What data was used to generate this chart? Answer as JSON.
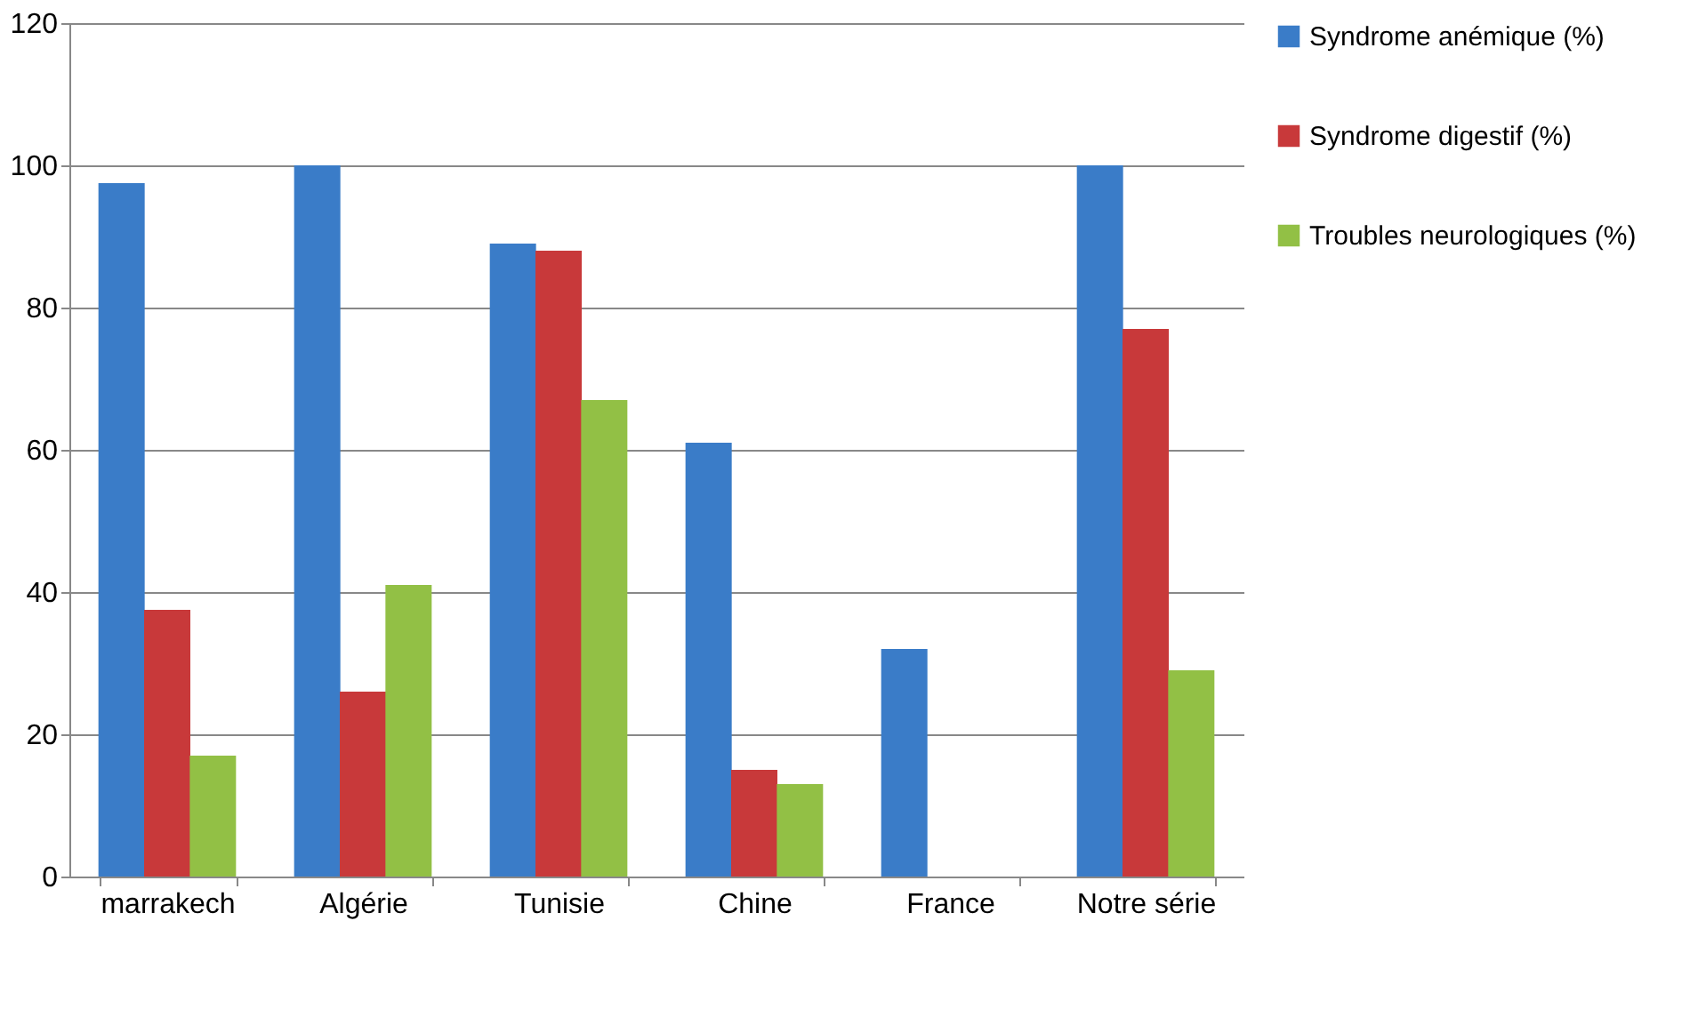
{
  "chart_data": {
    "type": "bar",
    "categories": [
      "marrakech",
      "Algérie",
      "Tunisie",
      "Chine",
      "France",
      "Notre série"
    ],
    "series": [
      {
        "name": "Syndrome anémique (%)",
        "color": "#3a7cc8",
        "values": [
          97.5,
          100,
          89,
          61,
          32,
          100
        ]
      },
      {
        "name": "Syndrome digestif (%)",
        "color": "#c8393a",
        "values": [
          37.5,
          26,
          88,
          15,
          0,
          77
        ]
      },
      {
        "name": "Troubles neurologiques (%)",
        "color": "#92c045",
        "values": [
          17,
          41,
          67,
          13,
          0,
          29
        ]
      }
    ],
    "ylim": [
      0,
      120
    ],
    "yticks": [
      0,
      20,
      40,
      60,
      80,
      100,
      120
    ],
    "grid": "y",
    "legend": "right"
  }
}
